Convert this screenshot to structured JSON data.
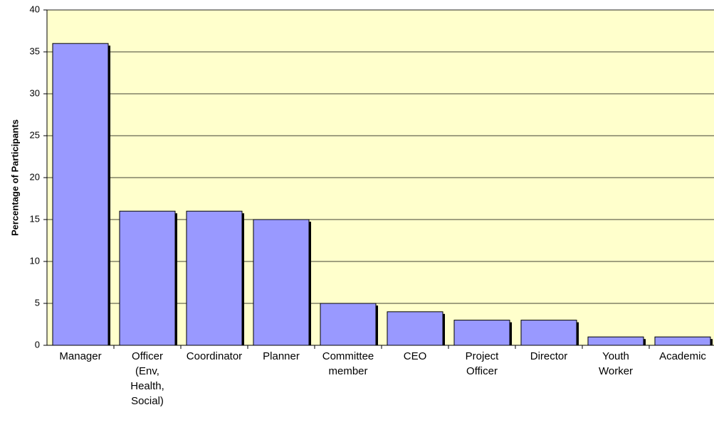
{
  "chart_data": {
    "type": "bar",
    "y_label": "Percentage of Participants",
    "categories": [
      "Manager",
      "Officer\n(Env,\nHealth,\nSocial)",
      "Coordinator",
      "Planner",
      "Committee\nmember",
      "CEO",
      "Project\nOfficer",
      "Director",
      "Youth\nWorker",
      "Academic"
    ],
    "values": [
      36,
      16,
      16,
      15,
      5,
      4,
      3,
      3,
      1,
      1
    ],
    "color": "#9999ff",
    "background": "#ffffcc",
    "ylim": [
      0,
      40
    ],
    "yticks": [
      0,
      5,
      10,
      15,
      20,
      25,
      30,
      35,
      40
    ],
    "grid": true
  }
}
